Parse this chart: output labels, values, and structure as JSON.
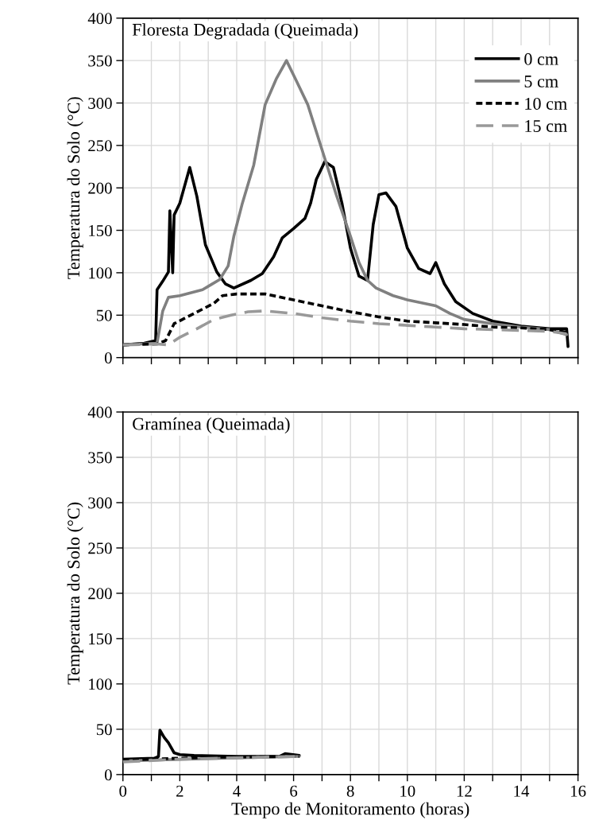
{
  "chart_data": [
    {
      "type": "line",
      "title": "Floresta Degradada (Queimada)",
      "ylabel": "Temperatura do Solo (°C)",
      "xlim": [
        0,
        16
      ],
      "ylim": [
        0,
        400
      ],
      "xticks": [
        {
          "value": 0,
          "label": null
        },
        {
          "value": 1,
          "label": null
        },
        {
          "value": 2,
          "label": null
        },
        {
          "value": 3,
          "label": null
        },
        {
          "value": 4,
          "label": null
        },
        {
          "value": 5,
          "label": null
        },
        {
          "value": 6,
          "label": null
        },
        {
          "value": 7,
          "label": null
        },
        {
          "value": 8,
          "label": null
        },
        {
          "value": 9,
          "label": null
        },
        {
          "value": 10,
          "label": null
        },
        {
          "value": 11,
          "label": null
        },
        {
          "value": 12,
          "label": null
        },
        {
          "value": 13,
          "label": null
        },
        {
          "value": 14,
          "label": null
        },
        {
          "value": 15,
          "label": null
        },
        {
          "value": 16,
          "label": null
        }
      ],
      "yticks": [
        0,
        50,
        100,
        150,
        200,
        250,
        300,
        350,
        400
      ],
      "grid": true,
      "legend": "top right",
      "tick_labels": "y",
      "series": [
        {
          "name": "0 cm",
          "color": "#000000",
          "line_style": "solid",
          "x": [
            0,
            0.75,
            1.15,
            1.2,
            1.4,
            1.6,
            1.65,
            1.75,
            1.8,
            2.0,
            2.35,
            2.6,
            2.9,
            3.3,
            3.6,
            3.9,
            4.5,
            4.9,
            5.3,
            5.6,
            6.0,
            6.4,
            6.6,
            6.8,
            7.1,
            7.4,
            7.7,
            8.0,
            8.3,
            8.6,
            8.8,
            9.0,
            9.25,
            9.6,
            10.0,
            10.4,
            10.8,
            11.0,
            11.3,
            11.7,
            12.3,
            13,
            14,
            15,
            15.6,
            15.65
          ],
          "values": [
            15,
            17,
            20,
            80,
            90,
            101,
            173,
            100,
            168,
            182,
            224,
            190,
            133,
            101,
            87,
            82,
            91,
            99,
            119,
            141,
            152,
            164,
            182,
            210,
            231,
            224,
            182,
            129,
            96,
            91,
            157,
            192,
            194,
            178,
            129,
            105,
            99,
            112,
            87,
            66,
            52,
            43,
            37,
            34,
            34,
            13
          ]
        },
        {
          "name": "5 cm",
          "color": "#808080",
          "line_style": "solid",
          "x": [
            0,
            1.2,
            1.4,
            1.6,
            2.0,
            2.8,
            3.1,
            3.4,
            3.7,
            3.9,
            4.2,
            4.6,
            5.0,
            5.4,
            5.75,
            6.1,
            6.5,
            7.0,
            7.5,
            8.0,
            8.3,
            8.6,
            8.9,
            9.5,
            10,
            11,
            11.5,
            12,
            13,
            14,
            15,
            15.6
          ],
          "values": [
            15,
            17,
            55,
            71,
            73,
            80,
            86,
            92,
            108,
            143,
            182,
            227,
            298,
            329,
            350,
            326,
            298,
            245,
            192,
            143,
            112,
            91,
            82,
            73,
            68,
            61,
            52,
            45,
            40,
            36,
            33,
            27
          ]
        },
        {
          "name": "10 cm",
          "color": "#000000",
          "line_style": "dotted",
          "x": [
            0,
            1.2,
            1.5,
            1.8,
            2.5,
            3.2,
            3.5,
            4,
            5,
            6,
            7,
            8,
            9,
            10,
            11,
            12,
            13,
            14,
            15,
            15.6
          ],
          "values": [
            15,
            16,
            20,
            40,
            52,
            64,
            73,
            75,
            75,
            68,
            61,
            54,
            48,
            43,
            41,
            39,
            36,
            35,
            33,
            30
          ]
        },
        {
          "name": "15 cm",
          "color": "#999999",
          "line_style": "dashed",
          "x": [
            0,
            1.2,
            1.6,
            2.0,
            2.6,
            3.2,
            3.8,
            4.4,
            5,
            6,
            7,
            8,
            9,
            10,
            11,
            12,
            13,
            14,
            15,
            15.6
          ],
          "values": [
            15,
            16,
            15,
            24,
            34,
            45,
            50,
            54,
            55,
            52,
            47,
            43,
            40,
            38,
            36,
            34,
            33,
            32,
            31,
            28
          ]
        }
      ]
    },
    {
      "type": "line",
      "title": "Gramínea (Queimada)",
      "ylabel": "Temperatura do Solo (°C)",
      "xlabel": "Tempo de Monitoramento (horas)",
      "xlim": [
        0,
        16
      ],
      "ylim": [
        0,
        400
      ],
      "xticks": [
        0,
        {
          "value": 1,
          "label": null
        },
        2,
        {
          "value": 3,
          "label": null
        },
        4,
        {
          "value": 5,
          "label": null
        },
        6,
        {
          "value": 7,
          "label": null
        },
        8,
        {
          "value": 9,
          "label": null
        },
        10,
        {
          "value": 11,
          "label": null
        },
        12,
        {
          "value": 13,
          "label": null
        },
        14,
        {
          "value": 15,
          "label": null
        },
        16
      ],
      "yticks": [
        0,
        50,
        100,
        150,
        200,
        250,
        300,
        350,
        400
      ],
      "grid": true,
      "series": [
        {
          "color": "#000000",
          "line_style": "solid",
          "x": [
            0,
            1.1,
            1.25,
            1.3,
            1.45,
            1.6,
            1.8,
            2.0,
            2.5,
            4,
            5.5,
            5.7,
            6.2
          ],
          "values": [
            17,
            18,
            20,
            49,
            41,
            35,
            24,
            22,
            21,
            20,
            20,
            23,
            21
          ]
        },
        {
          "color": "#808080",
          "line_style": "solid",
          "x": [
            0,
            1,
            6.2
          ],
          "values": [
            15,
            16,
            20
          ]
        },
        {
          "color": "#000000",
          "line_style": "dotted",
          "x": [
            0,
            3,
            6.2
          ],
          "values": [
            16,
            19,
            20
          ]
        },
        {
          "color": "#999999",
          "line_style": "dashed",
          "x": [
            0,
            2,
            6.2
          ],
          "values": [
            14,
            17,
            20
          ]
        }
      ]
    }
  ]
}
